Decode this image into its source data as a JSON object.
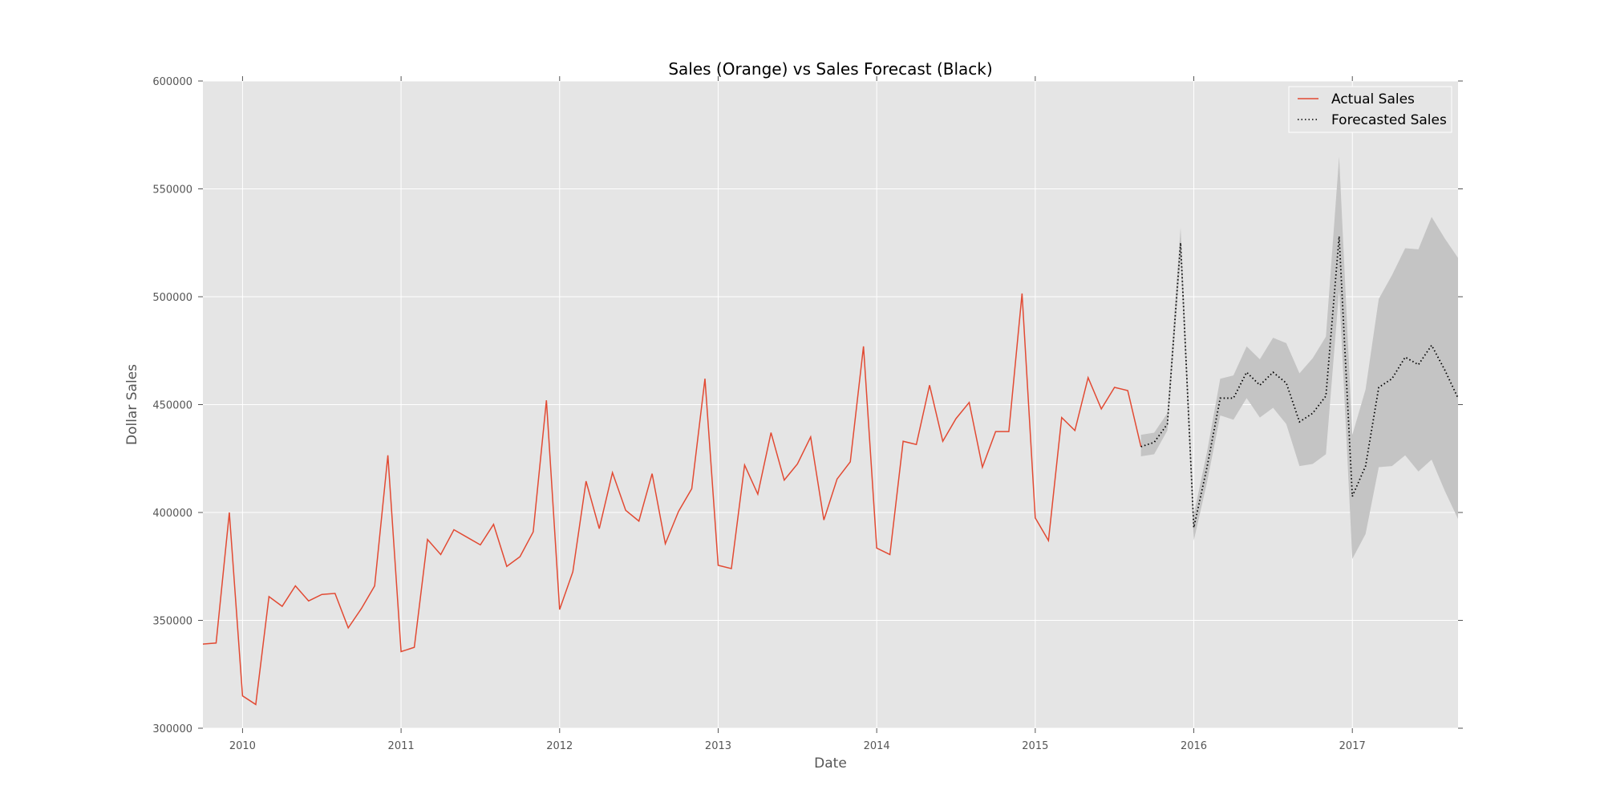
{
  "chart_data": {
    "type": "line",
    "title": "Sales (Orange) vs Sales Forecast (Black)",
    "xlabel": "Date",
    "ylabel": "Dollar Sales",
    "xlim": [
      "2009-10",
      "2017-09"
    ],
    "ylim": [
      300000,
      600000
    ],
    "x_ticks": [
      "2010",
      "2011",
      "2012",
      "2013",
      "2014",
      "2015",
      "2016",
      "2017"
    ],
    "y_ticks": [
      300000,
      350000,
      400000,
      450000,
      500000,
      550000,
      600000
    ],
    "grid": true,
    "legend_position": "top-right",
    "series": [
      {
        "name": "Actual Sales",
        "style": "solid",
        "color": "#e24a33",
        "x": [
          "2009-10",
          "2009-11",
          "2009-12",
          "2010-01",
          "2010-02",
          "2010-03",
          "2010-04",
          "2010-05",
          "2010-06",
          "2010-07",
          "2010-08",
          "2010-09",
          "2010-10",
          "2010-11",
          "2010-12",
          "2011-01",
          "2011-02",
          "2011-03",
          "2011-04",
          "2011-05",
          "2011-06",
          "2011-07",
          "2011-08",
          "2011-09",
          "2011-10",
          "2011-11",
          "2011-12",
          "2012-01",
          "2012-02",
          "2012-03",
          "2012-04",
          "2012-05",
          "2012-06",
          "2012-07",
          "2012-08",
          "2012-09",
          "2012-10",
          "2012-11",
          "2012-12",
          "2013-01",
          "2013-02",
          "2013-03",
          "2013-04",
          "2013-05",
          "2013-06",
          "2013-07",
          "2013-08",
          "2013-09",
          "2013-10",
          "2013-11",
          "2013-12",
          "2014-01",
          "2014-02",
          "2014-03",
          "2014-04",
          "2014-05",
          "2014-06",
          "2014-07",
          "2014-08",
          "2014-09",
          "2014-10",
          "2014-11",
          "2014-12",
          "2015-01",
          "2015-02",
          "2015-03",
          "2015-04",
          "2015-05",
          "2015-06",
          "2015-07",
          "2015-08",
          "2015-09"
        ],
        "values": [
          339000,
          339500,
          400000,
          315000,
          311000,
          361000,
          356500,
          366000,
          359000,
          362000,
          362500,
          346500,
          355500,
          366000,
          426500,
          335500,
          337500,
          387500,
          380500,
          392000,
          388500,
          385000,
          394500,
          375000,
          379500,
          391000,
          452000,
          355000,
          372500,
          414500,
          392500,
          418500,
          401000,
          396000,
          418000,
          385500,
          400500,
          411000,
          462000,
          375500,
          374000,
          422000,
          408500,
          437000,
          415000,
          422500,
          435000,
          396500,
          415500,
          423500,
          477000,
          383500,
          380500,
          433000,
          431500,
          459000,
          433000,
          443500,
          451000,
          421000,
          437500,
          437500,
          501500,
          397500,
          387000,
          444000,
          438000,
          462500,
          448000,
          458000,
          456500,
          430500
        ]
      },
      {
        "name": "Forecasted Sales",
        "style": "dotted",
        "color": "#000000",
        "x": [
          "2015-09",
          "2015-10",
          "2015-11",
          "2015-12",
          "2016-01",
          "2016-02",
          "2016-03",
          "2016-04",
          "2016-05",
          "2016-06",
          "2016-07",
          "2016-08",
          "2016-09",
          "2016-10",
          "2016-11",
          "2016-12",
          "2017-01",
          "2017-02",
          "2017-03",
          "2017-04",
          "2017-05",
          "2017-06",
          "2017-07",
          "2017-08",
          "2017-09"
        ],
        "values": [
          430500,
          432500,
          441000,
          525000,
          393000,
          421000,
          453000,
          453000,
          465000,
          459000,
          465000,
          460000,
          442000,
          446000,
          454000,
          528000,
          407500,
          421500,
          458000,
          462000,
          472000,
          468500,
          477500,
          466000,
          453000
        ],
        "interval_lower": [
          426000,
          427000,
          438000,
          518000,
          387000,
          414000,
          445000,
          443000,
          453000,
          444000,
          448500,
          441000,
          421500,
          422500,
          427000,
          503000,
          378500,
          390000,
          421000,
          421500,
          426500,
          419000,
          424500,
          410000,
          397000
        ],
        "interval_upper": [
          436000,
          437000,
          446000,
          532000,
          399000,
          428000,
          462000,
          463500,
          477000,
          471000,
          481000,
          478500,
          464500,
          471500,
          481500,
          565000,
          436000,
          457000,
          499000,
          510000,
          522500,
          522000,
          537000,
          527000,
          518000
        ]
      }
    ]
  }
}
